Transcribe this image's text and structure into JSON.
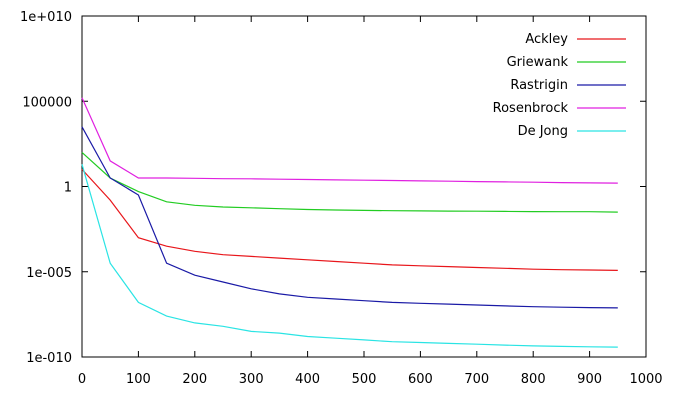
{
  "chart_data": {
    "type": "line",
    "title": "",
    "xlabel": "",
    "ylabel": "",
    "xlim": [
      0,
      1000
    ],
    "ylim_log10": [
      -10,
      10
    ],
    "y_scale": "log",
    "grid": false,
    "legend_position": "top-right",
    "x_ticks": [
      0,
      100,
      200,
      300,
      400,
      500,
      600,
      700,
      800,
      900,
      1000
    ],
    "x_tick_labels": [
      "0",
      "100",
      "200",
      "300",
      "400",
      "500",
      "600",
      "700",
      "800",
      "900",
      "1000"
    ],
    "y_ticks_log10": [
      -10,
      -5,
      0,
      5,
      10
    ],
    "y_tick_labels": [
      "1e-010",
      "1e-005",
      "1",
      "100000",
      "1e+010"
    ],
    "x": [
      0,
      50,
      100,
      150,
      200,
      250,
      300,
      350,
      400,
      450,
      500,
      550,
      600,
      650,
      700,
      750,
      800,
      850,
      900,
      950
    ],
    "series": [
      {
        "name": "Ackley",
        "color": "#e8161b",
        "log10_values": [
          1.0,
          -0.8,
          -3.0,
          -3.5,
          -3.8,
          -4.0,
          -4.1,
          -4.2,
          -4.3,
          -4.4,
          -4.5,
          -4.6,
          -4.65,
          -4.7,
          -4.75,
          -4.8,
          -4.85,
          -4.88,
          -4.9,
          -4.92
        ]
      },
      {
        "name": "Griewank",
        "color": "#22cc22",
        "log10_values": [
          2.0,
          0.5,
          -0.3,
          -0.9,
          -1.1,
          -1.2,
          -1.25,
          -1.3,
          -1.35,
          -1.38,
          -1.4,
          -1.42,
          -1.43,
          -1.44,
          -1.45,
          -1.46,
          -1.47,
          -1.48,
          -1.48,
          -1.5
        ]
      },
      {
        "name": "Rastrigin",
        "color": "#1a1aa6",
        "log10_values": [
          3.5,
          0.5,
          -0.5,
          -4.5,
          -5.2,
          -5.6,
          -6.0,
          -6.3,
          -6.5,
          -6.6,
          -6.7,
          -6.8,
          -6.85,
          -6.9,
          -6.95,
          -7.0,
          -7.05,
          -7.08,
          -7.1,
          -7.12
        ]
      },
      {
        "name": "Rosenbrock",
        "color": "#e020e0",
        "log10_values": [
          5.2,
          1.5,
          0.5,
          0.5,
          0.48,
          0.46,
          0.45,
          0.43,
          0.41,
          0.39,
          0.37,
          0.35,
          0.33,
          0.31,
          0.29,
          0.27,
          0.25,
          0.23,
          0.21,
          0.2
        ]
      },
      {
        "name": "De Jong",
        "color": "#2ae4e4",
        "log10_values": [
          1.3,
          -4.5,
          -6.8,
          -7.6,
          -8.0,
          -8.2,
          -8.5,
          -8.6,
          -8.8,
          -8.9,
          -9.0,
          -9.1,
          -9.15,
          -9.2,
          -9.25,
          -9.3,
          -9.35,
          -9.38,
          -9.4,
          -9.42
        ]
      }
    ]
  }
}
